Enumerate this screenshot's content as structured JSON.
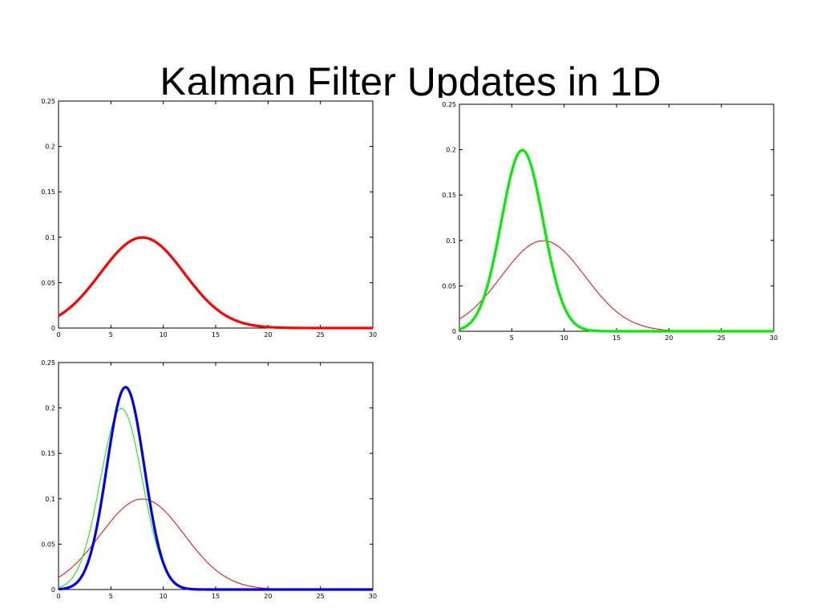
{
  "slide": {
    "title": "Kalman Filter Updates in 1D"
  },
  "chart_data": [
    {
      "type": "line",
      "xlim": [
        0,
        30
      ],
      "ylim": [
        0,
        0.25
      ],
      "xticks": [
        "0",
        "5",
        "10",
        "15",
        "20",
        "25",
        "30"
      ],
      "yticks": [
        "0",
        "0.05",
        "0.1",
        "0.15",
        "0.2",
        "0.25"
      ],
      "grid": false,
      "series": [
        {
          "mean": 8,
          "sigma": 4,
          "color": "#ff0000",
          "weight": "thick"
        }
      ]
    },
    {
      "type": "line",
      "xlim": [
        0,
        30
      ],
      "ylim": [
        0,
        0.25
      ],
      "xticks": [
        "0",
        "5",
        "10",
        "15",
        "20",
        "25",
        "30"
      ],
      "yticks": [
        "0",
        "0.05",
        "0.1",
        "0.15",
        "0.2",
        "0.25"
      ],
      "grid": false,
      "series": [
        {
          "mean": 8,
          "sigma": 4,
          "color": "#ff0000",
          "weight": "thin"
        },
        {
          "mean": 6,
          "sigma": 2,
          "color": "#00ee00",
          "weight": "thick"
        }
      ]
    },
    {
      "type": "line",
      "xlim": [
        0,
        30
      ],
      "ylim": [
        0,
        0.25
      ],
      "xticks": [
        "0",
        "5",
        "10",
        "15",
        "20",
        "25",
        "30"
      ],
      "yticks": [
        "0",
        "0.05",
        "0.1",
        "0.15",
        "0.2",
        "0.25"
      ],
      "grid": false,
      "series": [
        {
          "mean": 8,
          "sigma": 4,
          "color": "#ff0000",
          "weight": "thin"
        },
        {
          "mean": 6,
          "sigma": 2,
          "color": "#00ee00",
          "weight": "thin"
        },
        {
          "mean": 6.4,
          "sigma": 1.79,
          "color": "#0000ee",
          "weight": "thick"
        }
      ]
    }
  ]
}
